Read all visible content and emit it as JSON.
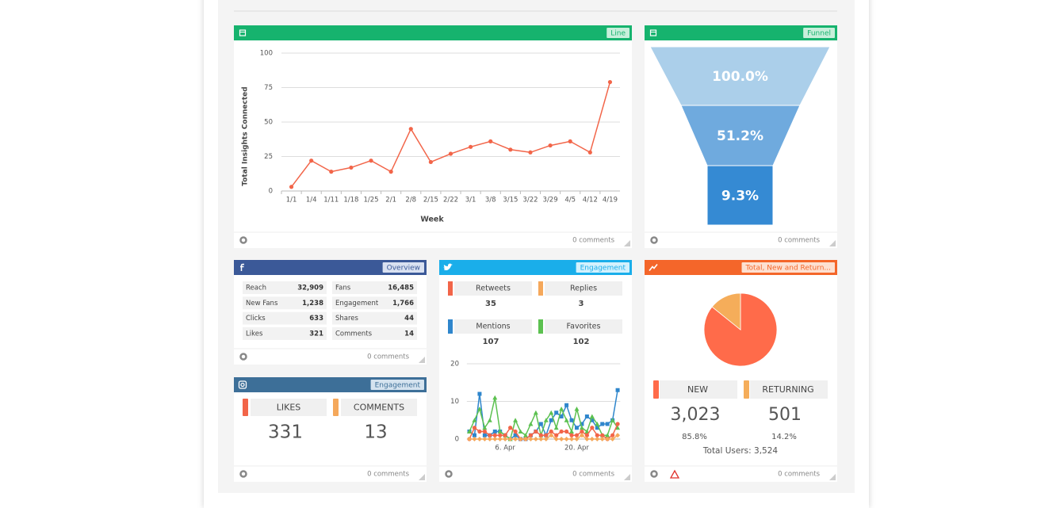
{
  "line_widget": {
    "badge": "Line",
    "comments": "0 comments",
    "chart": {
      "type": "line",
      "y_label": "Total Insights Connected",
      "x_label": "Week",
      "categories": [
        "1/1",
        "1/4",
        "1/11",
        "1/18",
        "1/25",
        "2/1",
        "2/8",
        "2/15",
        "2/22",
        "3/1",
        "3/8",
        "3/15",
        "3/22",
        "3/29",
        "4/5",
        "4/12",
        "4/19"
      ],
      "values": [
        3,
        22,
        14,
        17,
        22,
        14,
        45,
        21,
        27,
        32,
        36,
        30,
        28,
        33,
        36,
        28,
        79
      ],
      "color": "#f26549",
      "ylim": [
        0,
        100
      ],
      "yticks": [
        0,
        25,
        50,
        75,
        100
      ],
      "grid": true
    }
  },
  "funnel_widget": {
    "badge": "Funnel",
    "comments": "0 comments",
    "chart": {
      "type": "funnel",
      "values": [
        100,
        51.2,
        9.3
      ],
      "value_labels": [
        "100.0%",
        "51.2%",
        "9.3%"
      ],
      "colors": [
        "#abcfea",
        "#6faade",
        "#358ad3"
      ]
    }
  },
  "facebook_widget": {
    "badge": "Overview",
    "comments": "0 comments",
    "table": {
      "rows": [
        [
          "Reach",
          "32,909",
          "Fans",
          "16,485"
        ],
        [
          "New Fans",
          "1,238",
          "Engagement",
          "1,766"
        ],
        [
          "Clicks",
          633,
          "Shares",
          44
        ],
        [
          "Likes",
          321,
          "Comments",
          14
        ]
      ]
    }
  },
  "instagram_widget": {
    "badge": "Engagement",
    "comments": "0 comments",
    "stats": [
      {
        "label": "LIKES",
        "value": 331,
        "color": "#f26549"
      },
      {
        "label": "COMMENTS",
        "value": 13,
        "color": "#f5a85b"
      }
    ]
  },
  "twitter_widget": {
    "badge": "Engagement",
    "comments": "0 comments",
    "stats": [
      {
        "label": "Retweets",
        "value": 35,
        "color": "#f26549"
      },
      {
        "label": "Replies",
        "value": 3,
        "color": "#f5a85b"
      },
      {
        "label": "Mentions",
        "value": 107,
        "color": "#2f86cc"
      },
      {
        "label": "Favorites",
        "value": 102,
        "color": "#5cc150"
      }
    ],
    "chart": {
      "type": "line",
      "categories": [
        null,
        null,
        null,
        null,
        null,
        null,
        null,
        "6. Apr",
        null,
        null,
        null,
        null,
        null,
        null,
        null,
        null,
        null,
        null,
        null,
        null,
        null,
        "20. Apr",
        null,
        null,
        null,
        null,
        null,
        null,
        null,
        null
      ],
      "series": [
        {
          "color": "#2f86cc",
          "values": [
            2,
            1,
            12,
            1,
            1,
            2,
            2,
            1,
            0,
            1,
            0,
            0,
            1,
            2,
            4,
            1,
            5,
            7,
            6,
            9,
            5,
            3,
            4,
            6,
            5,
            3,
            4,
            4,
            5,
            13
          ]
        },
        {
          "color": "#5cc150",
          "values": [
            2,
            5,
            8,
            3,
            5,
            11,
            2,
            1,
            0,
            5,
            2,
            1,
            4,
            7,
            1,
            5,
            7,
            3,
            8,
            5,
            2,
            8,
            3,
            2,
            6,
            4,
            1,
            1,
            5,
            3
          ]
        },
        {
          "color": "#f26549",
          "values": [
            0,
            3,
            2,
            2,
            1,
            1,
            1,
            1,
            3,
            2,
            0,
            0,
            1,
            2,
            1,
            1,
            2,
            1,
            2,
            2,
            1,
            1,
            2,
            1,
            3,
            1,
            1,
            0,
            1,
            4
          ]
        },
        {
          "color": "#f5a85b",
          "values": [
            0,
            0,
            0,
            0,
            0,
            0,
            0,
            0,
            0,
            0,
            0,
            0,
            0,
            0,
            0,
            0,
            1,
            0,
            0,
            0,
            0,
            0,
            1,
            0,
            0,
            0,
            0,
            0,
            0,
            1
          ]
        }
      ],
      "ylim": [
        0,
        20
      ],
      "yticks": [
        0,
        10,
        20
      ],
      "grid": true
    }
  },
  "users_widget": {
    "badge": "Total, New and Return...",
    "comments": "0 comments",
    "chart": {
      "type": "pie",
      "categories": [
        "NEW",
        "RETURNING"
      ],
      "values": [
        3023,
        501
      ],
      "value_labels": [
        "3,023",
        "501"
      ],
      "percent_labels": [
        "85.8%",
        "14.2%"
      ],
      "colors": [
        "#ff6b4a",
        "#f5ad5a"
      ]
    },
    "total": "Total Users: 3,524"
  }
}
